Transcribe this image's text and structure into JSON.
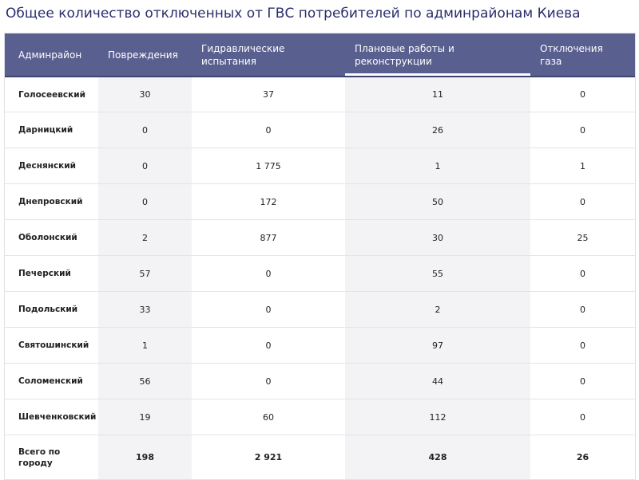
{
  "title": "Общее количество отключенных от ГВС потребителей по админрайонам Киева",
  "chart_data": {
    "type": "table",
    "columns": [
      "Админрайон",
      "Повреждения",
      "Гидравлические испытания",
      "Плановые работы и реконструкции",
      "Отключения газа"
    ],
    "rows": [
      {
        "district": "Голосеевский",
        "damage": "30",
        "hydraulic": "37",
        "planned": "11",
        "gas": "0"
      },
      {
        "district": "Дарницкий",
        "damage": "0",
        "hydraulic": "0",
        "planned": "26",
        "gas": "0"
      },
      {
        "district": "Деснянский",
        "damage": "0",
        "hydraulic": "1 775",
        "planned": "1",
        "gas": "1"
      },
      {
        "district": "Днепровский",
        "damage": "0",
        "hydraulic": "172",
        "planned": "50",
        "gas": "0"
      },
      {
        "district": "Оболонский",
        "damage": "2",
        "hydraulic": "877",
        "planned": "30",
        "gas": "25"
      },
      {
        "district": "Печерский",
        "damage": "57",
        "hydraulic": "0",
        "planned": "55",
        "gas": "0"
      },
      {
        "district": "Подольский",
        "damage": "33",
        "hydraulic": "0",
        "planned": "2",
        "gas": "0"
      },
      {
        "district": "Святошинский",
        "damage": "1",
        "hydraulic": "0",
        "planned": "97",
        "gas": "0"
      },
      {
        "district": "Соломенский",
        "damage": "56",
        "hydraulic": "0",
        "planned": "44",
        "gas": "0"
      },
      {
        "district": "Шевченковский",
        "damage": "19",
        "hydraulic": "60",
        "planned": "112",
        "gas": "0"
      }
    ],
    "total": {
      "district": "Всего по городу",
      "damage": "198",
      "hydraulic": "2 921",
      "planned": "428",
      "gas": "26"
    },
    "sorted_column": 3
  },
  "colors": {
    "header_bg": "#59608f",
    "title": "#2a2f6b",
    "stripe": "#f3f3f6"
  }
}
